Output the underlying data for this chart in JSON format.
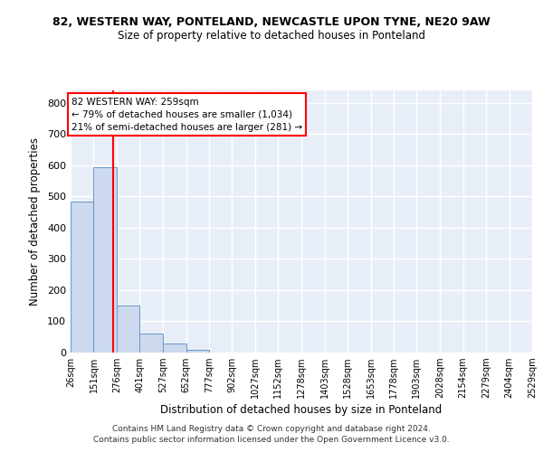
{
  "title1": "82, WESTERN WAY, PONTELAND, NEWCASTLE UPON TYNE, NE20 9AW",
  "title2": "Size of property relative to detached houses in Ponteland",
  "xlabel": "Distribution of detached houses by size in Ponteland",
  "ylabel": "Number of detached properties",
  "bin_labels": [
    "26sqm",
    "151sqm",
    "276sqm",
    "401sqm",
    "527sqm",
    "652sqm",
    "777sqm",
    "902sqm",
    "1027sqm",
    "1152sqm",
    "1278sqm",
    "1403sqm",
    "1528sqm",
    "1653sqm",
    "1778sqm",
    "1903sqm",
    "2028sqm",
    "2154sqm",
    "2279sqm",
    "2404sqm",
    "2529sqm"
  ],
  "bin_edges": [
    26,
    151,
    276,
    401,
    527,
    652,
    777,
    902,
    1027,
    1152,
    1278,
    1403,
    1528,
    1653,
    1778,
    1903,
    2028,
    2154,
    2279,
    2404,
    2529
  ],
  "bar_heights": [
    485,
    595,
    150,
    62,
    28,
    10,
    0,
    0,
    0,
    0,
    0,
    0,
    0,
    0,
    0,
    0,
    0,
    0,
    0,
    0
  ],
  "bar_color": "#ccd9ee",
  "bar_edge_color": "#6699cc",
  "bg_color": "#e8eef8",
  "grid_color": "#ffffff",
  "red_line_x": 259,
  "ylim": [
    0,
    840
  ],
  "yticks": [
    0,
    100,
    200,
    300,
    400,
    500,
    600,
    700,
    800
  ],
  "annotation_line1": "82 WESTERN WAY: 259sqm",
  "annotation_line2": "← 79% of detached houses are smaller (1,034)",
  "annotation_line3": "21% of semi-detached houses are larger (281) →",
  "footer1": "Contains HM Land Registry data © Crown copyright and database right 2024.",
  "footer2": "Contains public sector information licensed under the Open Government Licence v3.0."
}
